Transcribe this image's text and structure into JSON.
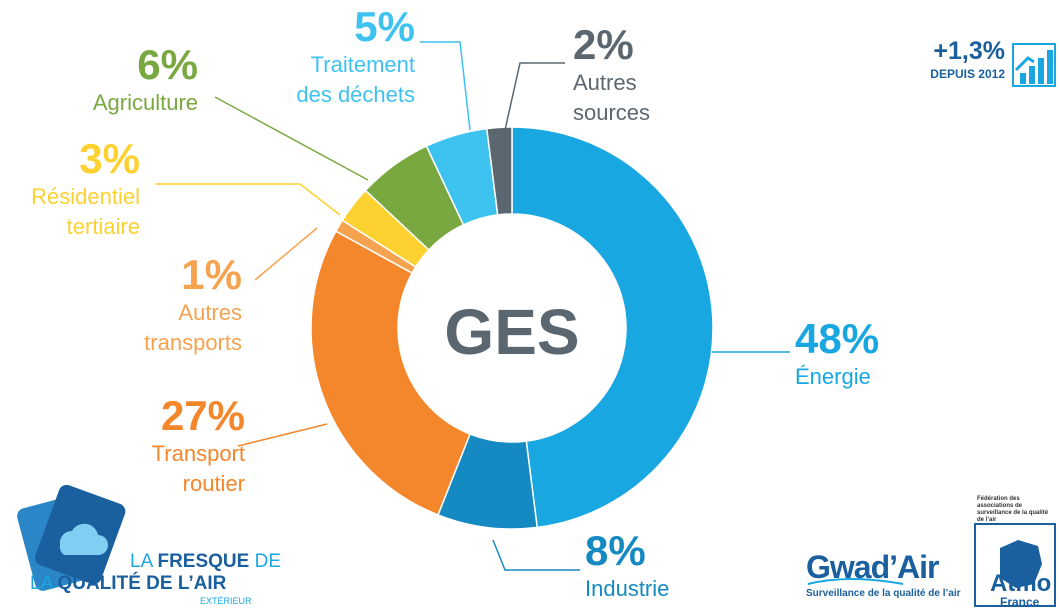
{
  "chart_data": {
    "type": "donut",
    "center_label": "GES",
    "categories": [
      "Énergie",
      "Industrie",
      "Transport\nroutier",
      "Autres\ntransports",
      "Résidentiel\ntertiaire",
      "Agriculture",
      "Traitement\ndes déchets",
      "Autres\nsources"
    ],
    "values": [
      48,
      8,
      27,
      1,
      3,
      6,
      5,
      2
    ],
    "value_labels": [
      "48%",
      "8%",
      "27%",
      "1%",
      "3%",
      "6%",
      "5%",
      "2%"
    ],
    "colors": [
      "#19a7e1",
      "#158ac2",
      "#f4862b",
      "#f6a24f",
      "#fdd130",
      "#7aa840",
      "#3ec2f0",
      "#5b6770"
    ],
    "label_colors": [
      "#19a7e1",
      "#158ac2",
      "#f4862b",
      "#f6a24f",
      "#fdd130",
      "#7aa840",
      "#3ec2f0",
      "#5b6770"
    ],
    "annotation": {
      "value": "+1,3%",
      "text": "DEPUIS 2012"
    }
  },
  "logos": {
    "fresque_1": "LA ",
    "fresque_2": "FRESQUE",
    "fresque_3": " DE",
    "fresque_4": "LA ",
    "fresque_5": "QUALITÉ DE L’AIR",
    "fresque_6": "EXTÉRIEUR",
    "gwadair": "Gwad’Air",
    "gwadair_sub": "Surveillance de la qualité de l’air",
    "atmo_top": "Fédération des associations de surveillance de la qualité de l’air",
    "atmo": "Atmo",
    "atmo_sub": "France"
  }
}
